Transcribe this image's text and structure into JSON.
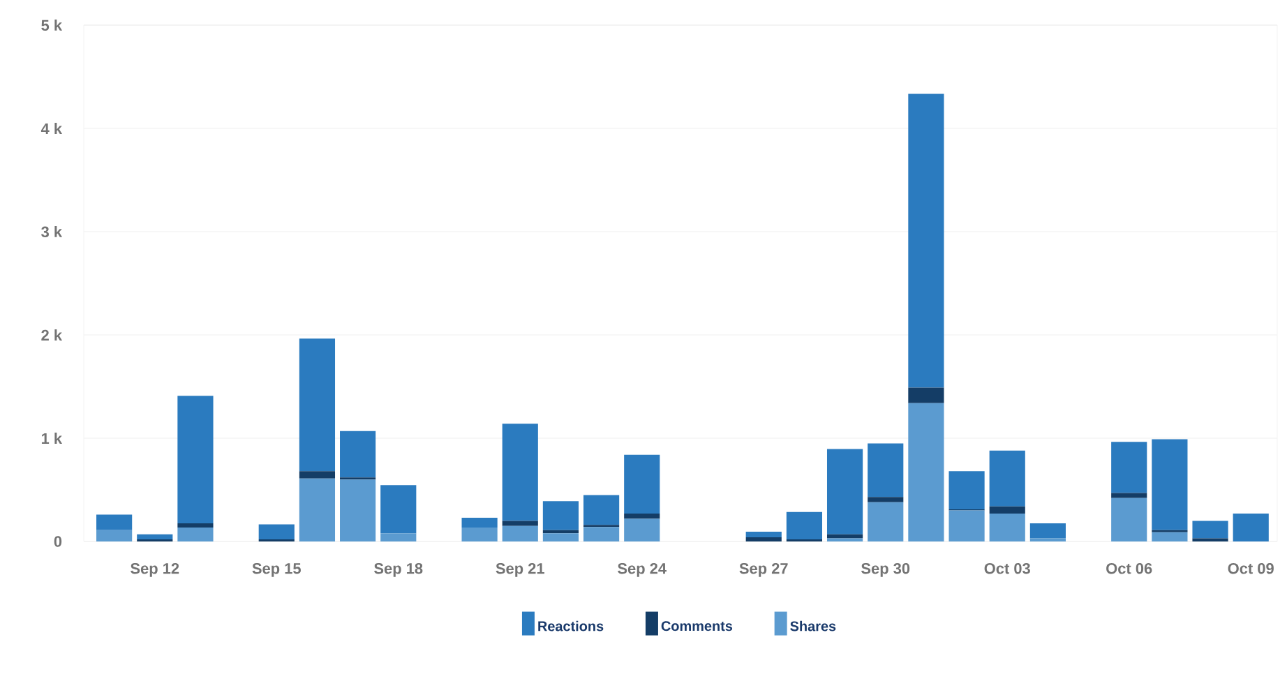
{
  "chart_data": {
    "type": "bar",
    "stacked": true,
    "categories": [
      null,
      "Sep 12",
      null,
      null,
      "Sep 15",
      null,
      null,
      "Sep 18",
      null,
      null,
      "Sep 21",
      null,
      null,
      "Sep 24",
      null,
      null,
      "Sep 27",
      null,
      null,
      "Sep 30",
      null,
      null,
      "Oct 03",
      null,
      null,
      "Oct 06",
      null,
      null,
      "Oct 09"
    ],
    "series": [
      {
        "name": "Shares",
        "color": "#5b9bd0",
        "values": [
          110,
          0,
          135,
          0,
          0,
          610,
          600,
          80,
          0,
          135,
          150,
          80,
          140,
          220,
          0,
          0,
          0,
          0,
          30,
          380,
          1340,
          300,
          270,
          30,
          0,
          420,
          90,
          0,
          0
        ]
      },
      {
        "name": "Comments",
        "color": "#143d66",
        "values": [
          0,
          20,
          40,
          0,
          20,
          70,
          20,
          0,
          0,
          0,
          50,
          30,
          20,
          50,
          0,
          0,
          40,
          20,
          40,
          50,
          150,
          10,
          70,
          0,
          0,
          50,
          20,
          30,
          0
        ]
      },
      {
        "name": "Reactions",
        "color": "#2b7bbf",
        "values": [
          150,
          50,
          1235,
          0,
          145,
          1285,
          450,
          465,
          0,
          95,
          940,
          280,
          290,
          570,
          0,
          0,
          55,
          265,
          825,
          520,
          2845,
          370,
          540,
          145,
          0,
          495,
          880,
          170,
          270
        ]
      }
    ],
    "ylim": [
      0,
      5000
    ],
    "yticks": [
      0,
      {
        "value": 1000,
        "label": "1 k"
      },
      {
        "value": 2000,
        "label": "2 k"
      },
      {
        "value": 3000,
        "label": "3 k"
      },
      {
        "value": 4000,
        "label": "4 k"
      },
      {
        "value": 5000,
        "label": "5 k"
      }
    ],
    "grid": "y",
    "legend": "bottom"
  }
}
